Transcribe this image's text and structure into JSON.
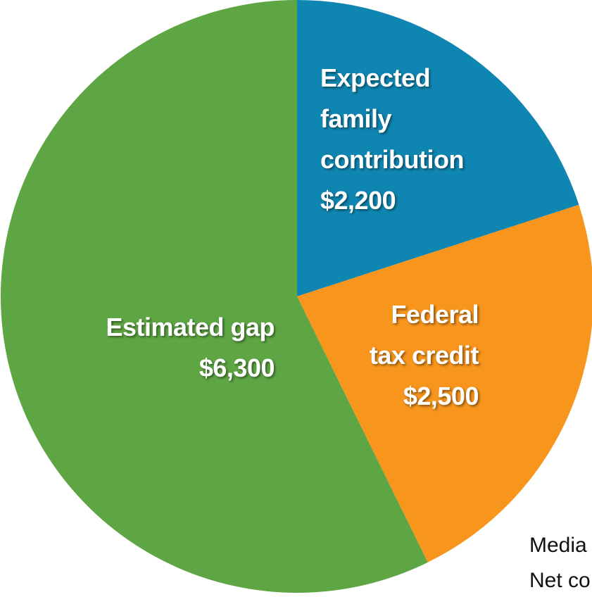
{
  "chart_data": {
    "type": "pie",
    "categories": [
      "Expected family contribution",
      "Federal tax credit",
      "Estimated gap"
    ],
    "values": [
      2200,
      2500,
      6300
    ],
    "value_labels": [
      "$2,200",
      "$2,500",
      "$6,300"
    ],
    "colors": [
      "#0f86b1",
      "#f7951d",
      "#5ea643"
    ],
    "notes": [
      "Media",
      "Net co"
    ]
  }
}
